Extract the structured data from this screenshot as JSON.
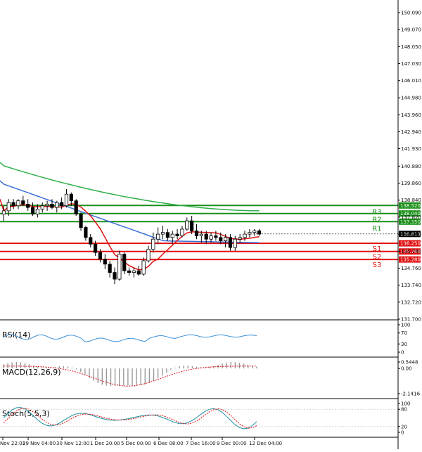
{
  "chart_data": {
    "type": "candlestick",
    "title": "",
    "xlabel": "",
    "ylabel": "",
    "price_axis": {
      "ylim": [
        131.3,
        150.5
      ],
      "ticks": [
        "150.090",
        "149.070",
        "148.050",
        "147.030",
        "146.010",
        "144.980",
        "143.960",
        "142.940",
        "141.930",
        "140.880",
        "139.860",
        "138.840",
        "137.820",
        "136.790",
        "135.780",
        "134.760",
        "133.740",
        "132.720",
        "131.700"
      ]
    },
    "x_tick_labels": [
      "Nov 22:01",
      "29 Nov 04:00",
      "30 Nov 12:00",
      "1 Dec 20:00",
      "5 Dec 00:00",
      "6 Dec 08:00",
      "7 Dec 16:00",
      "9 Dec 00:00",
      "12 Dec 04:00"
    ],
    "current_price": "136.813",
    "levels": [
      {
        "name": "R3",
        "value": 138.52,
        "label": "138.520",
        "color": "#1a8f1a"
      },
      {
        "name": "R2",
        "value": 138.04,
        "label": "138.040",
        "color": "#1a8f1a"
      },
      {
        "name": "R1",
        "value": 137.55,
        "label": "137.550",
        "color": "#1a8f1a"
      },
      {
        "name": "S1",
        "value": 136.25,
        "label": "136.250",
        "color": "#e01010"
      },
      {
        "name": "S2",
        "value": 135.76,
        "label": "135.760",
        "color": "#e01010"
      },
      {
        "name": "S3",
        "value": 135.28,
        "label": "135.280",
        "color": "#e01010"
      }
    ],
    "hidden_level_label": "137.610",
    "candles": [
      {
        "o": 138.0,
        "h": 138.5,
        "l": 137.6,
        "c": 138.2
      },
      {
        "o": 138.2,
        "h": 138.9,
        "l": 137.9,
        "c": 138.7
      },
      {
        "o": 138.7,
        "h": 138.9,
        "l": 138.3,
        "c": 138.5
      },
      {
        "o": 138.5,
        "h": 138.9,
        "l": 138.3,
        "c": 138.8
      },
      {
        "o": 138.8,
        "h": 139.1,
        "l": 138.5,
        "c": 138.6
      },
      {
        "o": 138.6,
        "h": 138.9,
        "l": 138.2,
        "c": 138.4
      },
      {
        "o": 138.4,
        "h": 138.7,
        "l": 137.9,
        "c": 138.0
      },
      {
        "o": 138.0,
        "h": 138.6,
        "l": 137.8,
        "c": 138.3
      },
      {
        "o": 138.3,
        "h": 138.7,
        "l": 138.1,
        "c": 138.5
      },
      {
        "o": 138.5,
        "h": 138.8,
        "l": 138.2,
        "c": 138.6
      },
      {
        "o": 138.6,
        "h": 138.9,
        "l": 138.3,
        "c": 138.4
      },
      {
        "o": 138.4,
        "h": 138.8,
        "l": 138.1,
        "c": 138.7
      },
      {
        "o": 138.7,
        "h": 139.0,
        "l": 138.3,
        "c": 138.5
      },
      {
        "o": 138.5,
        "h": 139.5,
        "l": 138.4,
        "c": 139.2
      },
      {
        "o": 139.2,
        "h": 139.3,
        "l": 138.5,
        "c": 138.8
      },
      {
        "o": 138.8,
        "h": 138.9,
        "l": 137.9,
        "c": 138.0
      },
      {
        "o": 138.0,
        "h": 138.1,
        "l": 137.0,
        "c": 137.2
      },
      {
        "o": 137.2,
        "h": 137.3,
        "l": 136.4,
        "c": 136.6
      },
      {
        "o": 136.6,
        "h": 136.8,
        "l": 136.0,
        "c": 136.2
      },
      {
        "o": 136.2,
        "h": 136.4,
        "l": 135.5,
        "c": 135.7
      },
      {
        "o": 135.7,
        "h": 135.9,
        "l": 135.1,
        "c": 135.3
      },
      {
        "o": 135.3,
        "h": 135.6,
        "l": 134.7,
        "c": 135.0
      },
      {
        "o": 135.0,
        "h": 135.2,
        "l": 134.2,
        "c": 134.5
      },
      {
        "o": 134.5,
        "h": 134.8,
        "l": 133.8,
        "c": 134.1
      },
      {
        "o": 134.1,
        "h": 135.8,
        "l": 134.0,
        "c": 135.6
      },
      {
        "o": 135.6,
        "h": 135.7,
        "l": 134.4,
        "c": 134.6
      },
      {
        "o": 134.6,
        "h": 134.8,
        "l": 134.3,
        "c": 134.5
      },
      {
        "o": 134.5,
        "h": 134.8,
        "l": 134.2,
        "c": 134.6
      },
      {
        "o": 134.6,
        "h": 134.9,
        "l": 134.3,
        "c": 134.4
      },
      {
        "o": 134.4,
        "h": 135.4,
        "l": 134.3,
        "c": 135.2
      },
      {
        "o": 135.2,
        "h": 136.1,
        "l": 135.1,
        "c": 135.9
      },
      {
        "o": 135.9,
        "h": 136.9,
        "l": 135.7,
        "c": 136.5
      },
      {
        "o": 136.5,
        "h": 137.2,
        "l": 136.2,
        "c": 136.8
      },
      {
        "o": 136.8,
        "h": 137.3,
        "l": 136.5,
        "c": 136.9
      },
      {
        "o": 136.9,
        "h": 137.1,
        "l": 136.4,
        "c": 136.6
      },
      {
        "o": 136.6,
        "h": 137.0,
        "l": 136.2,
        "c": 136.8
      },
      {
        "o": 136.8,
        "h": 137.1,
        "l": 136.5,
        "c": 136.7
      },
      {
        "o": 136.7,
        "h": 137.3,
        "l": 136.6,
        "c": 137.1
      },
      {
        "o": 137.1,
        "h": 137.8,
        "l": 137.0,
        "c": 137.6
      },
      {
        "o": 137.6,
        "h": 137.9,
        "l": 136.8,
        "c": 137.0
      },
      {
        "o": 137.0,
        "h": 137.4,
        "l": 136.5,
        "c": 136.7
      },
      {
        "o": 136.7,
        "h": 137.0,
        "l": 136.3,
        "c": 136.8
      },
      {
        "o": 136.8,
        "h": 137.0,
        "l": 136.2,
        "c": 136.5
      },
      {
        "o": 136.5,
        "h": 136.9,
        "l": 136.3,
        "c": 136.7
      },
      {
        "o": 136.7,
        "h": 137.0,
        "l": 136.4,
        "c": 136.6
      },
      {
        "o": 136.6,
        "h": 136.9,
        "l": 136.2,
        "c": 136.4
      },
      {
        "o": 136.4,
        "h": 136.8,
        "l": 136.0,
        "c": 136.6
      },
      {
        "o": 136.6,
        "h": 136.8,
        "l": 135.8,
        "c": 136.0
      },
      {
        "o": 136.0,
        "h": 136.7,
        "l": 135.8,
        "c": 136.5
      },
      {
        "o": 136.5,
        "h": 136.8,
        "l": 136.3,
        "c": 136.6
      },
      {
        "o": 136.6,
        "h": 137.0,
        "l": 136.4,
        "c": 136.8
      },
      {
        "o": 136.8,
        "h": 137.1,
        "l": 136.6,
        "c": 136.9
      },
      {
        "o": 136.9,
        "h": 137.1,
        "l": 136.7,
        "c": 137.0
      },
      {
        "o": 137.0,
        "h": 137.1,
        "l": 136.7,
        "c": 136.8
      }
    ],
    "indicators": [
      {
        "name": "RSI(14)",
        "ticks": [
          "100",
          "70",
          "30",
          "0"
        ],
        "range": [
          0,
          100
        ]
      },
      {
        "name": "MACD(12,26,9)",
        "ticks": [
          "0.5448",
          "0.00",
          "-2.1416"
        ],
        "range": [
          -2.1416,
          0.5448
        ]
      },
      {
        "name": "Stoch(5,5,3)",
        "ticks": [
          "100",
          "80",
          "20",
          "0"
        ],
        "range": [
          0,
          100
        ]
      }
    ],
    "colors": {
      "up": "#1a8f1a",
      "down": "#e01010",
      "ma_fast": "#e01010",
      "ma_mid": "#3a6fd8",
      "ma_slow": "#2fb04a",
      "rsi": "#3a8fd8",
      "signal": "#e01010",
      "stoch_main": "#1a8fa0"
    }
  }
}
